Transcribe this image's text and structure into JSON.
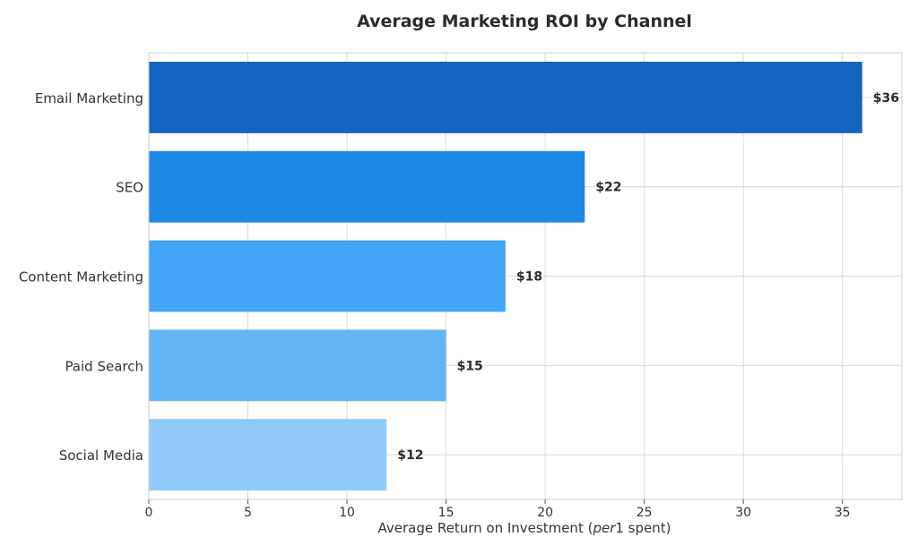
{
  "chart_data": {
    "type": "bar",
    "orientation": "horizontal",
    "title": "Average Marketing ROI by Channel",
    "xlabel": "Average Return on Investment (per1 spent)",
    "xlabel_parts": {
      "before": "Average Return on Investment (",
      "italic": "per",
      "after": "1 spent)"
    },
    "ylabel": "",
    "xlim": [
      0,
      38
    ],
    "xticks": [
      0,
      5,
      10,
      15,
      20,
      25,
      30,
      35
    ],
    "grid": true,
    "categories": [
      "Email Marketing",
      "SEO",
      "Content Marketing",
      "Paid Search",
      "Social Media"
    ],
    "values": [
      36,
      22,
      18,
      15,
      12
    ],
    "data_labels": [
      "$36",
      "$22",
      "$18",
      "$15",
      "$12"
    ],
    "colors": [
      "#1565c0",
      "#1e88e5",
      "#42a5f5",
      "#64b5f6",
      "#90caf9"
    ]
  }
}
